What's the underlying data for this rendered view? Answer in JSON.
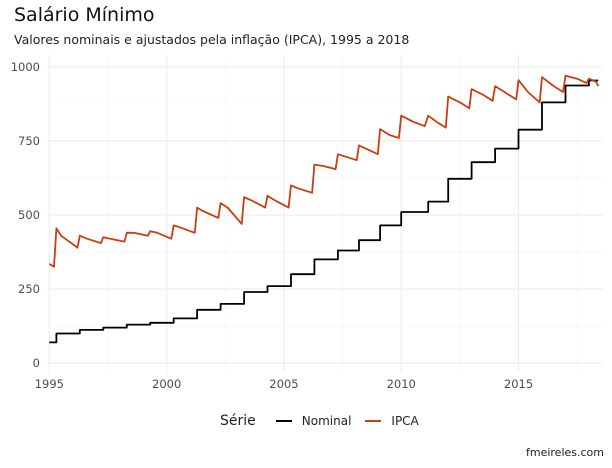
{
  "title": "Salário Mínimo",
  "subtitle": "Valores nominais e ajustados pela inflação (IPCA), 1995 a 2018",
  "caption": "fmeireles.com",
  "legend": {
    "title": "Série",
    "position": "bottom"
  },
  "chart_data": {
    "type": "line",
    "xlabel": "",
    "ylabel": "",
    "xlim": [
      1994.9,
      2018.6
    ],
    "ylim": [
      -30,
      1040
    ],
    "x_ticks": [
      1995,
      2000,
      2005,
      2010,
      2015
    ],
    "y_ticks": [
      0,
      250,
      500,
      750,
      1000
    ],
    "grid": true,
    "series": [
      {
        "name": "Nominal",
        "color": "#000000",
        "step": true,
        "points": [
          [
            1995.0,
            70
          ],
          [
            1995.3,
            100
          ],
          [
            1996.3,
            112
          ],
          [
            1997.3,
            120
          ],
          [
            1998.3,
            130
          ],
          [
            1999.3,
            136
          ],
          [
            2000.3,
            151
          ],
          [
            2001.3,
            180
          ],
          [
            2002.3,
            200
          ],
          [
            2003.3,
            240
          ],
          [
            2004.3,
            260
          ],
          [
            2005.3,
            300
          ],
          [
            2006.3,
            350
          ],
          [
            2007.3,
            380
          ],
          [
            2008.2,
            415
          ],
          [
            2009.1,
            465
          ],
          [
            2010.0,
            510
          ],
          [
            2011.15,
            545
          ],
          [
            2012.0,
            622
          ],
          [
            2013.0,
            678
          ],
          [
            2014.0,
            724
          ],
          [
            2015.0,
            788
          ],
          [
            2016.0,
            880
          ],
          [
            2017.0,
            937
          ],
          [
            2018.0,
            954
          ],
          [
            2018.4,
            954
          ]
        ]
      },
      {
        "name": "IPCA",
        "color": "#cc3d0e",
        "step": false,
        "points": [
          [
            1995.0,
            335
          ],
          [
            1995.2,
            325
          ],
          [
            1995.3,
            455
          ],
          [
            1995.5,
            430
          ],
          [
            1996.2,
            390
          ],
          [
            1996.3,
            430
          ],
          [
            1996.6,
            420
          ],
          [
            1997.2,
            405
          ],
          [
            1997.3,
            425
          ],
          [
            1997.6,
            420
          ],
          [
            1998.2,
            410
          ],
          [
            1998.3,
            440
          ],
          [
            1998.6,
            440
          ],
          [
            1999.2,
            430
          ],
          [
            1999.3,
            445
          ],
          [
            1999.6,
            440
          ],
          [
            2000.2,
            420
          ],
          [
            2000.3,
            465
          ],
          [
            2000.5,
            460
          ],
          [
            2001.2,
            440
          ],
          [
            2001.3,
            525
          ],
          [
            2001.5,
            515
          ],
          [
            2002.2,
            490
          ],
          [
            2002.3,
            540
          ],
          [
            2002.6,
            525
          ],
          [
            2003.2,
            470
          ],
          [
            2003.3,
            560
          ],
          [
            2003.6,
            550
          ],
          [
            2004.2,
            525
          ],
          [
            2004.3,
            565
          ],
          [
            2004.6,
            550
          ],
          [
            2005.2,
            525
          ],
          [
            2005.3,
            600
          ],
          [
            2005.6,
            590
          ],
          [
            2006.2,
            575
          ],
          [
            2006.3,
            670
          ],
          [
            2006.7,
            665
          ],
          [
            2007.2,
            655
          ],
          [
            2007.3,
            705
          ],
          [
            2007.7,
            695
          ],
          [
            2008.1,
            685
          ],
          [
            2008.2,
            735
          ],
          [
            2008.6,
            720
          ],
          [
            2009.0,
            705
          ],
          [
            2009.1,
            790
          ],
          [
            2009.5,
            770
          ],
          [
            2009.9,
            760
          ],
          [
            2010.0,
            835
          ],
          [
            2010.5,
            815
          ],
          [
            2011.0,
            800
          ],
          [
            2011.15,
            835
          ],
          [
            2011.5,
            815
          ],
          [
            2011.9,
            795
          ],
          [
            2012.0,
            900
          ],
          [
            2012.5,
            880
          ],
          [
            2012.9,
            860
          ],
          [
            2013.0,
            925
          ],
          [
            2013.5,
            905
          ],
          [
            2013.9,
            885
          ],
          [
            2014.0,
            935
          ],
          [
            2014.5,
            910
          ],
          [
            2014.9,
            890
          ],
          [
            2015.0,
            955
          ],
          [
            2015.4,
            915
          ],
          [
            2015.9,
            880
          ],
          [
            2016.0,
            965
          ],
          [
            2016.5,
            935
          ],
          [
            2016.9,
            915
          ],
          [
            2017.0,
            970
          ],
          [
            2017.5,
            960
          ],
          [
            2017.9,
            945
          ],
          [
            2018.0,
            960
          ],
          [
            2018.3,
            950
          ],
          [
            2018.4,
            935
          ]
        ]
      }
    ]
  }
}
